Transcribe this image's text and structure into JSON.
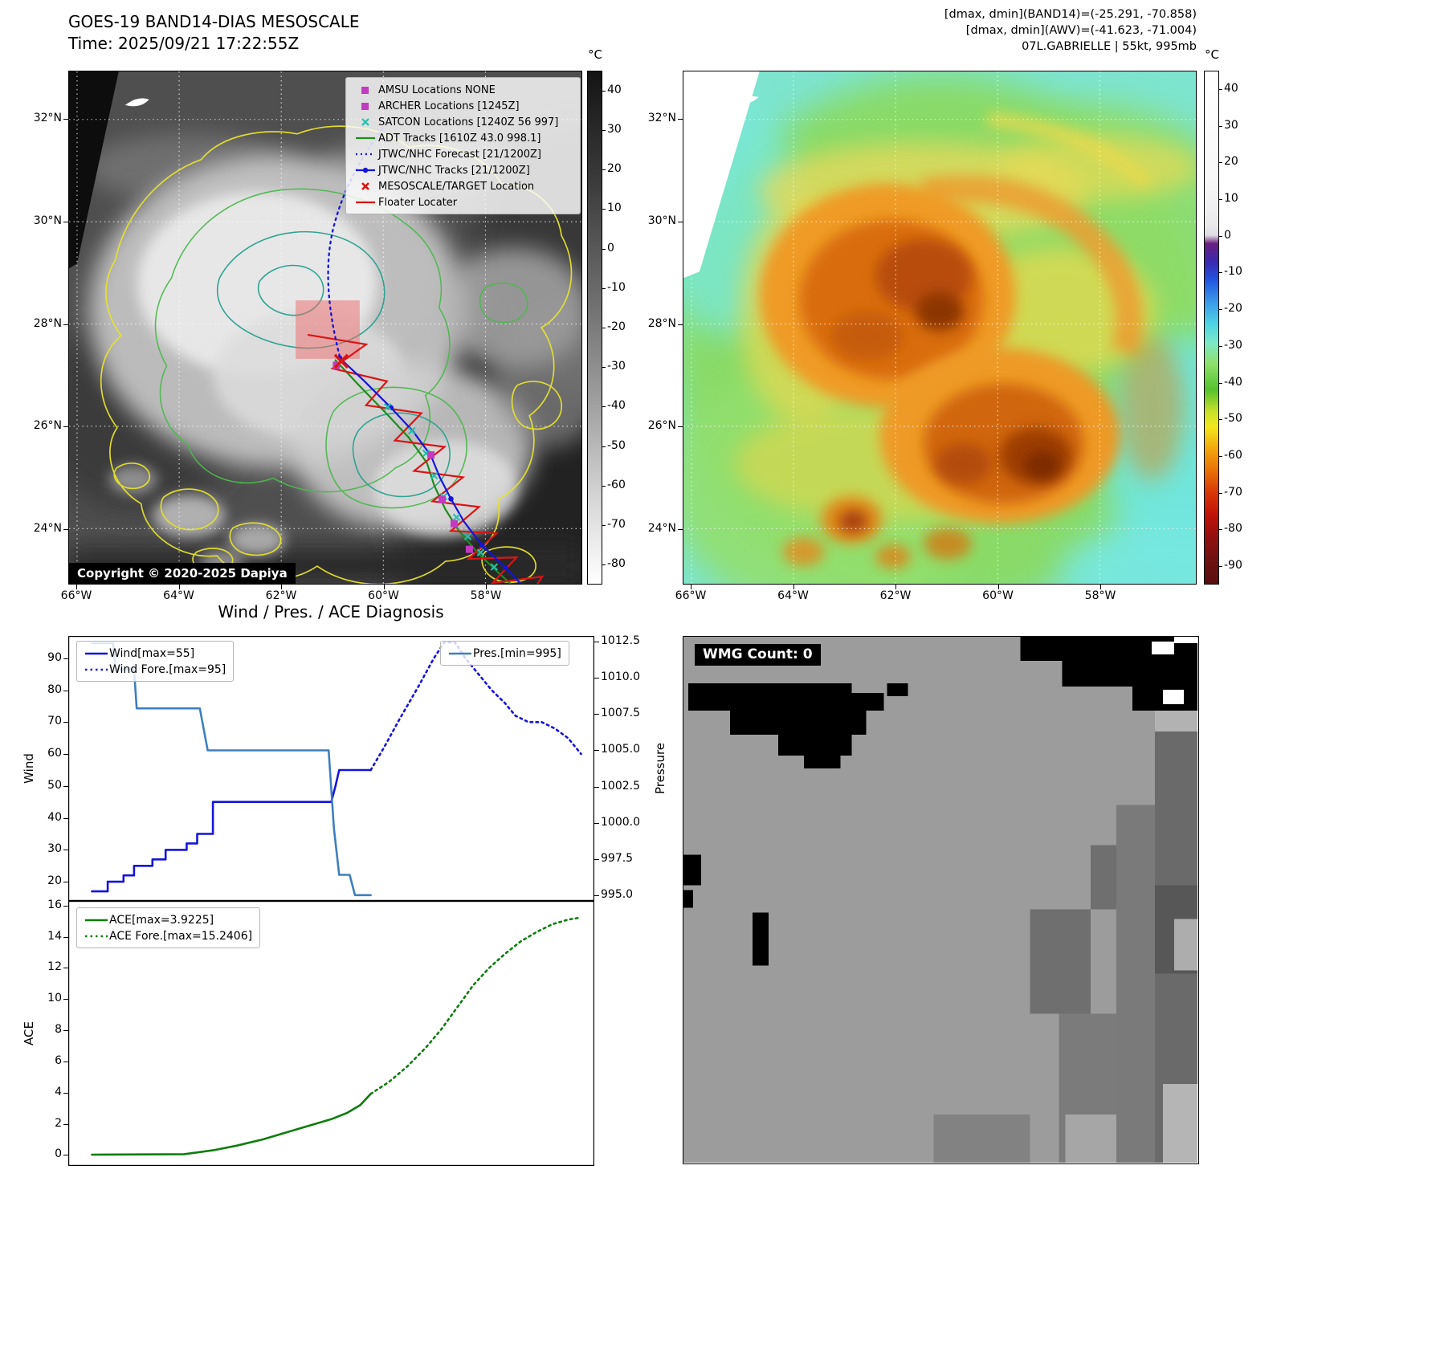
{
  "band14_panel": {
    "title": "GOES-19 BAND14-DIAS MESOSCALE",
    "time": "Time: 2025/09/21 17:22:55Z",
    "copyright": "Copyright © 2020-2025 Dapiya",
    "colorbar_unit": "°C",
    "colorbar_ticks": [
      40,
      30,
      20,
      10,
      0,
      -10,
      -20,
      -30,
      -40,
      -50,
      -60,
      -70,
      -80
    ],
    "lat_ticks": [
      "32°N",
      "30°N",
      "28°N",
      "26°N",
      "24°N"
    ],
    "lon_ticks": [
      "66°W",
      "64°W",
      "62°W",
      "60°W",
      "58°W"
    ],
    "legend": {
      "amsu": {
        "label": "AMSU Locations NONE",
        "color": "#c23bc2"
      },
      "archer": {
        "label": "ARCHER Locations [1245Z]",
        "color": "#c23bc2"
      },
      "satcon": {
        "label": "SATCON Locations [1240Z 56 997]",
        "color": "#23bfae"
      },
      "adt": {
        "label": "ADT Tracks [1610Z 43.0 998.1]",
        "color": "#1c8c1c"
      },
      "forecast": {
        "label": "JTWC/NHC Forecast [21/1200Z]",
        "color": "#1414dc"
      },
      "tracks": {
        "label": "JTWC/NHC Tracks [21/1200Z]",
        "color": "#1414dc"
      },
      "target": {
        "label": "MESOSCALE/TARGET Location",
        "color": "#dc1414"
      },
      "floater": {
        "label": "Floater Locater",
        "color": "#dc1414"
      }
    }
  },
  "enhanced_panel": {
    "header_line1": "[dmax, dmin](BAND14)=(-25.291, -70.858)",
    "header_line2": "[dmax, dmin](AWV)=(-41.623, -71.004)",
    "header_line3": "07L.GABRIELLE | 55kt, 995mb",
    "colorbar_unit": "°C",
    "colorbar_ticks": [
      40,
      30,
      20,
      10,
      0,
      -10,
      -20,
      -30,
      -40,
      -50,
      -60,
      -70,
      -80,
      -90
    ],
    "lat_ticks": [
      "32°N",
      "30°N",
      "28°N",
      "26°N",
      "24°N"
    ],
    "lon_ticks": [
      "66°W",
      "64°W",
      "62°W",
      "60°W",
      "58°W"
    ]
  },
  "diagnosis": {
    "title": "Wind / Pres. / ACE Diagnosis",
    "wind_ylabel": "Wind",
    "pressure_ylabel": "Pressure",
    "ace_ylabel": "ACE",
    "legend_wind": "Wind[max=55]",
    "legend_wind_fore": "Wind Fore.[max=95]",
    "legend_pres": "Pres.[min=995]",
    "legend_ace": "ACE[max=3.9225]",
    "legend_ace_fore": "ACE Fore.[max=15.2406]"
  },
  "wmg_panel": {
    "label": "WMG Count: 0"
  },
  "chart_data": [
    {
      "type": "line",
      "title": "Wind / Pres. / ACE Diagnosis",
      "xlabel": "",
      "ylabel": "Wind",
      "y2label": "Pressure",
      "xlim": [
        0,
        1
      ],
      "ylim": [
        14,
        97
      ],
      "y2lim": [
        994.6,
        1012.9
      ],
      "yticks": [
        20,
        30,
        40,
        50,
        60,
        70,
        80,
        90
      ],
      "y2ticks": [
        995.0,
        997.5,
        1000.0,
        1002.5,
        1005.0,
        1007.5,
        1010.0,
        1012.5
      ],
      "grid": false,
      "legend_position": "upper-left and upper-right",
      "series": [
        {
          "name": "Wind[max=55]",
          "axis": "y",
          "line": "solid",
          "color": "#1414dc",
          "points": [
            [
              0.045,
              17
            ],
            [
              0.075,
              17
            ],
            [
              0.075,
              20
            ],
            [
              0.105,
              20
            ],
            [
              0.105,
              22
            ],
            [
              0.125,
              22
            ],
            [
              0.125,
              25
            ],
            [
              0.16,
              25
            ],
            [
              0.16,
              27
            ],
            [
              0.185,
              27
            ],
            [
              0.185,
              30
            ],
            [
              0.225,
              30
            ],
            [
              0.225,
              32
            ],
            [
              0.245,
              32
            ],
            [
              0.245,
              35
            ],
            [
              0.275,
              35
            ],
            [
              0.275,
              45
            ],
            [
              0.5,
              45
            ],
            [
              0.508,
              50
            ],
            [
              0.515,
              55
            ],
            [
              0.575,
              55
            ]
          ]
        },
        {
          "name": "Wind Fore.[max=95]",
          "axis": "y",
          "line": "dotted",
          "color": "#1414dc",
          "points": [
            [
              0.575,
              55
            ],
            [
              0.6,
              62
            ],
            [
              0.63,
              71
            ],
            [
              0.665,
              81
            ],
            [
              0.695,
              90
            ],
            [
              0.715,
              95
            ],
            [
              0.735,
              95
            ],
            [
              0.755,
              90
            ],
            [
              0.78,
              85
            ],
            [
              0.805,
              80
            ],
            [
              0.83,
              76
            ],
            [
              0.85,
              72
            ],
            [
              0.875,
              70
            ],
            [
              0.9,
              70
            ],
            [
              0.925,
              68
            ],
            [
              0.95,
              65
            ],
            [
              0.975,
              60
            ]
          ]
        },
        {
          "name": "Pres.[min=995]",
          "axis": "y2",
          "line": "solid",
          "color": "#3f7fbf",
          "points": [
            [
              0.045,
              1012.4
            ],
            [
              0.085,
              1012.4
            ],
            [
              0.09,
              1010.6
            ],
            [
              0.125,
              1010.6
            ],
            [
              0.13,
              1007.9
            ],
            [
              0.25,
              1007.9
            ],
            [
              0.265,
              1005.0
            ],
            [
              0.495,
              1005.0
            ],
            [
              0.505,
              999.6
            ],
            [
              0.515,
              996.4
            ],
            [
              0.535,
              996.4
            ],
            [
              0.545,
              995.0
            ],
            [
              0.575,
              995.0
            ]
          ]
        }
      ]
    },
    {
      "type": "line",
      "title": "",
      "xlabel": "",
      "ylabel": "ACE",
      "xlim": [
        0,
        1
      ],
      "ylim": [
        -0.7,
        16.3
      ],
      "yticks": [
        0,
        2,
        4,
        6,
        8,
        10,
        12,
        14,
        16
      ],
      "grid": false,
      "series": [
        {
          "name": "ACE[max=3.9225]",
          "axis": "y",
          "line": "solid",
          "color": "#0e7d0e",
          "points": [
            [
              0.045,
              0.02
            ],
            [
              0.22,
              0.05
            ],
            [
              0.275,
              0.3
            ],
            [
              0.32,
              0.6
            ],
            [
              0.37,
              1.0
            ],
            [
              0.42,
              1.5
            ],
            [
              0.46,
              1.9
            ],
            [
              0.5,
              2.3
            ],
            [
              0.53,
              2.7
            ],
            [
              0.555,
              3.2
            ],
            [
              0.575,
              3.9225
            ]
          ]
        },
        {
          "name": "ACE Fore.[max=15.2406]",
          "axis": "y",
          "line": "dotted",
          "color": "#0e7d0e",
          "points": [
            [
              0.575,
              3.9225
            ],
            [
              0.61,
              4.7
            ],
            [
              0.645,
              5.7
            ],
            [
              0.68,
              6.9
            ],
            [
              0.71,
              8.1
            ],
            [
              0.74,
              9.5
            ],
            [
              0.77,
              10.9
            ],
            [
              0.8,
              12.0
            ],
            [
              0.83,
              12.9
            ],
            [
              0.86,
              13.7
            ],
            [
              0.89,
              14.3
            ],
            [
              0.92,
              14.8
            ],
            [
              0.95,
              15.1
            ],
            [
              0.975,
              15.2406
            ]
          ]
        }
      ]
    }
  ],
  "colors": {
    "wind_line": "#1414dc",
    "pressure_line": "#3f7fbf",
    "ace_line": "#0e7d0e",
    "track_red": "#dc1414",
    "track_green": "#1c8c1c",
    "contour_yellow": "#e6e22e",
    "contour_green": "#4db84d",
    "contour_teal": "#27a08e",
    "marker_magenta": "#c23bc2",
    "marker_cyan": "#23bfae"
  }
}
